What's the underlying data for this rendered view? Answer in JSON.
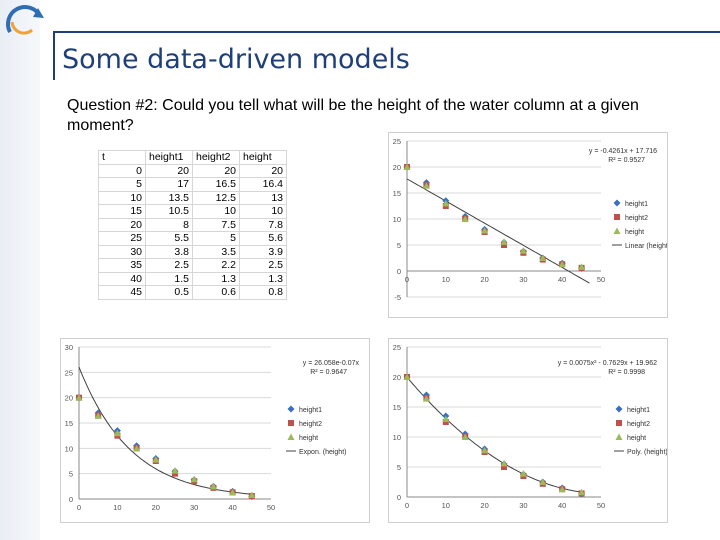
{
  "slide": {
    "title": "Some data-driven models",
    "question": "Question #2: Could you tell what will be the height of the water column at a given moment?"
  },
  "colors": {
    "series1": "#3a6fc4",
    "series2": "#c0504d",
    "series3": "#9bbb59",
    "title": "#1f3f7a"
  },
  "table": {
    "headers": [
      "t",
      "height1",
      "height2",
      "height"
    ],
    "rows": [
      [
        "0",
        "20",
        "20",
        "20"
      ],
      [
        "5",
        "17",
        "16.5",
        "16.4"
      ],
      [
        "10",
        "13.5",
        "12.5",
        "13"
      ],
      [
        "15",
        "10.5",
        "10",
        "10"
      ],
      [
        "20",
        "8",
        "7.5",
        "7.8"
      ],
      [
        "25",
        "5.5",
        "5",
        "5.6"
      ],
      [
        "30",
        "3.8",
        "3.5",
        "3.9"
      ],
      [
        "35",
        "2.5",
        "2.2",
        "2.5"
      ],
      [
        "40",
        "1.5",
        "1.3",
        "1.3"
      ],
      [
        "45",
        "0.5",
        "0.6",
        "0.8"
      ]
    ]
  },
  "chart_data": [
    {
      "type": "scatter",
      "title": "",
      "x": [
        0,
        5,
        10,
        15,
        20,
        25,
        30,
        35,
        40,
        45
      ],
      "series": [
        {
          "name": "height1",
          "marker": "diamond",
          "color": "#3a6fc4",
          "values": [
            20,
            17,
            13.5,
            10.5,
            8,
            5.5,
            3.8,
            2.5,
            1.5,
            0.5
          ]
        },
        {
          "name": "height2",
          "marker": "square",
          "color": "#c0504d",
          "values": [
            20,
            16.5,
            12.5,
            10,
            7.5,
            5,
            3.5,
            2.2,
            1.3,
            0.6
          ]
        },
        {
          "name": "height",
          "marker": "triangle",
          "color": "#9bbb59",
          "values": [
            20,
            16.4,
            13,
            10,
            7.8,
            5.6,
            3.9,
            2.5,
            1.3,
            0.8
          ]
        }
      ],
      "trendline": {
        "name": "Linear (height)",
        "kind": "linear",
        "a": -0.4261,
        "b": 17.716
      },
      "equation": "y = -0.4261x + 17.716",
      "r2": "R² = 0.9527",
      "xlim": [
        0,
        50
      ],
      "ylim": [
        -5,
        25
      ],
      "xticks": [
        "0",
        "10",
        "20",
        "30",
        "40",
        "50"
      ],
      "yticks": [
        "-5",
        "0",
        "5",
        "10",
        "15",
        "20",
        "25"
      ],
      "legend_position": "right"
    },
    {
      "type": "scatter",
      "title": "",
      "x": [
        0,
        5,
        10,
        15,
        20,
        25,
        30,
        35,
        40,
        45
      ],
      "series": [
        {
          "name": "height1",
          "marker": "diamond",
          "color": "#3a6fc4",
          "values": [
            20,
            17,
            13.5,
            10.5,
            8,
            5.5,
            3.8,
            2.5,
            1.5,
            0.5
          ]
        },
        {
          "name": "height2",
          "marker": "square",
          "color": "#c0504d",
          "values": [
            20,
            16.5,
            12.5,
            10,
            7.5,
            5,
            3.5,
            2.2,
            1.3,
            0.6
          ]
        },
        {
          "name": "height",
          "marker": "triangle",
          "color": "#9bbb59",
          "values": [
            20,
            16.4,
            13,
            10,
            7.8,
            5.6,
            3.9,
            2.5,
            1.3,
            0.8
          ]
        }
      ],
      "trendline": {
        "name": "Expon. (height)",
        "kind": "exponential",
        "a": 26.058,
        "k": -0.0738
      },
      "equation": "y = 26.058e-0.07x",
      "r2": "R² = 0.9647",
      "xlim": [
        0,
        50
      ],
      "ylim": [
        0,
        30
      ],
      "xticks": [
        "0",
        "10",
        "20",
        "30",
        "40",
        "50"
      ],
      "yticks": [
        "0",
        "5",
        "10",
        "15",
        "20",
        "25",
        "30"
      ],
      "legend_position": "right"
    },
    {
      "type": "scatter",
      "title": "",
      "x": [
        0,
        5,
        10,
        15,
        20,
        25,
        30,
        35,
        40,
        45
      ],
      "series": [
        {
          "name": "height1",
          "marker": "diamond",
          "color": "#3a6fc4",
          "values": [
            20,
            17,
            13.5,
            10.5,
            8,
            5.5,
            3.8,
            2.5,
            1.5,
            0.5
          ]
        },
        {
          "name": "height2",
          "marker": "square",
          "color": "#c0504d",
          "values": [
            20,
            16.5,
            12.5,
            10,
            7.5,
            5,
            3.5,
            2.2,
            1.3,
            0.6
          ]
        },
        {
          "name": "height",
          "marker": "triangle",
          "color": "#9bbb59",
          "values": [
            20,
            16.4,
            13,
            10,
            7.8,
            5.6,
            3.9,
            2.5,
            1.3,
            0.8
          ]
        }
      ],
      "trendline": {
        "name": "Poly. (height)",
        "kind": "poly2",
        "c2": 0.0075,
        "c1": -0.7629,
        "c0": 19.962
      },
      "equation": "y = 0.0075x² - 0.7629x + 19.962",
      "r2": "R² = 0.9998",
      "xlim": [
        0,
        50
      ],
      "ylim": [
        0,
        25
      ],
      "xticks": [
        "0",
        "10",
        "20",
        "30",
        "40",
        "50"
      ],
      "yticks": [
        "0",
        "5",
        "10",
        "15",
        "20",
        "25"
      ],
      "legend_position": "right"
    }
  ]
}
